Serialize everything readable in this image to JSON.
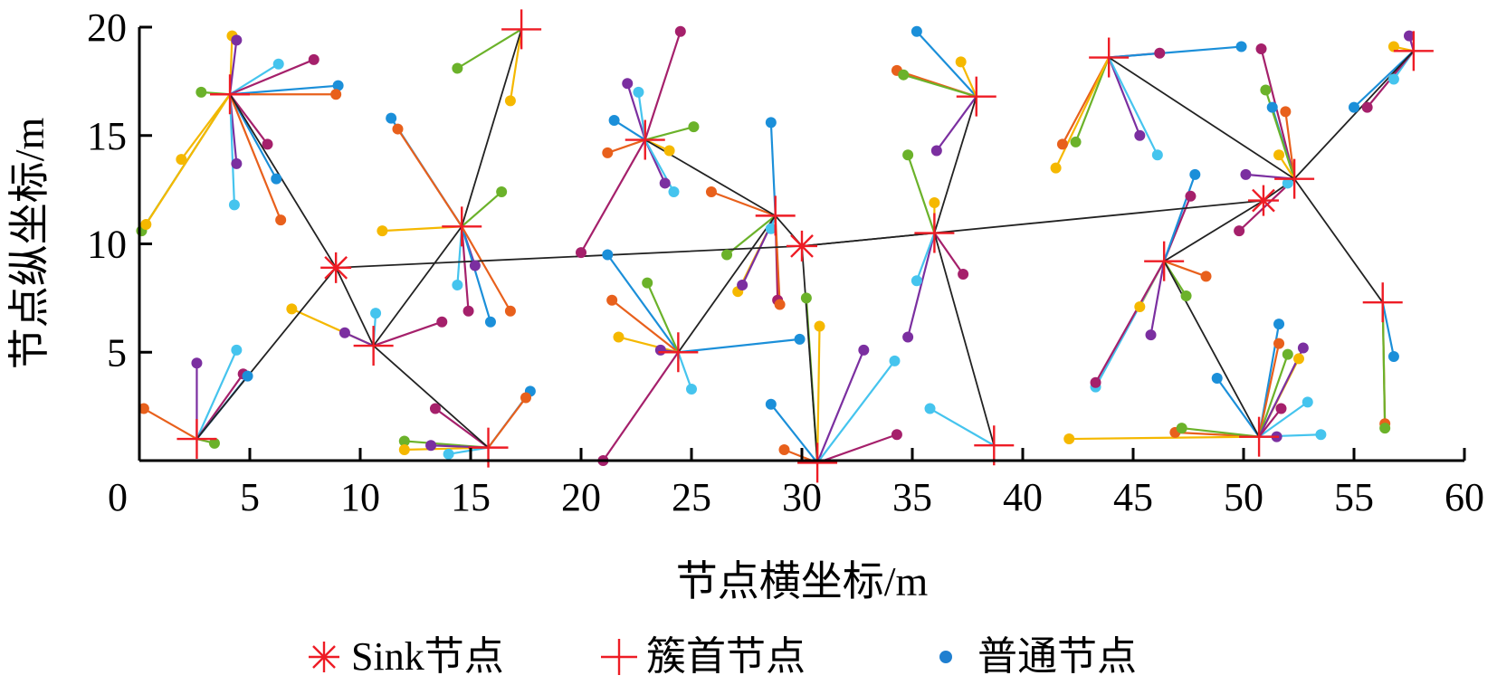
{
  "chart_data": {
    "type": "scatter",
    "xlabel": "节点横坐标/m",
    "ylabel": "节点纵坐标/m",
    "xlim": [
      0,
      60
    ],
    "ylim": [
      0,
      20
    ],
    "x_ticks": [
      "0",
      "5",
      "10",
      "15",
      "20",
      "25",
      "30",
      "35",
      "40",
      "45",
      "50",
      "55",
      "60"
    ],
    "y_ticks": [
      "5",
      "10",
      "15",
      "20"
    ],
    "grid": false,
    "legend_position": "bottom",
    "legend": [
      {
        "key": "sink",
        "label": "Sink节点",
        "marker": "asterisk",
        "color": "#ee1c25"
      },
      {
        "key": "head",
        "label": "簇首节点",
        "marker": "plus",
        "color": "#ee1c25"
      },
      {
        "key": "normal",
        "label": "普通节点",
        "marker": "dot",
        "color": "#1f7fd0"
      }
    ],
    "palette": [
      "#f5b800",
      "#e8601c",
      "#a5206b",
      "#7b2fa0",
      "#6bb22a",
      "#1b8fd9",
      "#45c4ee"
    ],
    "sinks": [
      {
        "x": 8.9,
        "y": 8.9
      },
      {
        "x": 30.0,
        "y": 9.9
      },
      {
        "x": 50.9,
        "y": 12.0
      }
    ],
    "heads": [
      {
        "id": "h1",
        "x": 4.1,
        "y": 16.9
      },
      {
        "id": "h2",
        "x": 2.6,
        "y": 1.0
      },
      {
        "id": "h3",
        "x": 10.6,
        "y": 5.3
      },
      {
        "id": "h4",
        "x": 14.6,
        "y": 10.8
      },
      {
        "id": "h5",
        "x": 15.8,
        "y": 0.6
      },
      {
        "id": "h6",
        "x": 17.3,
        "y": 19.9
      },
      {
        "id": "h7",
        "x": 22.9,
        "y": 14.8
      },
      {
        "id": "h8",
        "x": 24.4,
        "y": 5.0
      },
      {
        "id": "h9",
        "x": 28.8,
        "y": 11.3
      },
      {
        "id": "h10",
        "x": 30.7,
        "y": -0.1
      },
      {
        "id": "h11",
        "x": 36.0,
        "y": 10.5
      },
      {
        "id": "h12",
        "x": 37.9,
        "y": 16.8
      },
      {
        "id": "h13",
        "x": 38.7,
        "y": 0.7
      },
      {
        "id": "h14",
        "x": 43.9,
        "y": 18.6
      },
      {
        "id": "h15",
        "x": 46.4,
        "y": 9.2
      },
      {
        "id": "h16",
        "x": 50.7,
        "y": 1.1
      },
      {
        "id": "h17",
        "x": 52.3,
        "y": 13.0
      },
      {
        "id": "h18",
        "x": 56.3,
        "y": 7.3
      },
      {
        "id": "h19",
        "x": 57.7,
        "y": 18.9
      }
    ],
    "backbone": [
      [
        [
          4.1,
          16.9
        ],
        [
          8.9,
          8.9
        ],
        [
          2.6,
          1.0
        ]
      ],
      [
        [
          8.9,
          8.9
        ],
        [
          10.6,
          5.3
        ],
        [
          15.8,
          0.6
        ]
      ],
      [
        [
          10.6,
          5.3
        ],
        [
          14.6,
          10.8
        ],
        [
          17.3,
          19.9
        ]
      ],
      [
        [
          8.9,
          8.9
        ],
        [
          30.0,
          9.9
        ],
        [
          50.9,
          12.0
        ]
      ],
      [
        [
          30.0,
          9.9
        ],
        [
          28.8,
          11.3
        ],
        [
          22.9,
          14.8
        ]
      ],
      [
        [
          28.8,
          11.3
        ],
        [
          24.4,
          5.0
        ]
      ],
      [
        [
          30.0,
          9.9
        ],
        [
          30.7,
          -0.1
        ]
      ],
      [
        [
          30.0,
          9.9
        ],
        [
          36.0,
          10.5
        ],
        [
          38.7,
          0.7
        ]
      ],
      [
        [
          36.0,
          10.5
        ],
        [
          37.9,
          16.8
        ]
      ],
      [
        [
          50.9,
          12.0
        ],
        [
          46.4,
          9.2
        ],
        [
          50.7,
          1.1
        ]
      ],
      [
        [
          50.9,
          12.0
        ],
        [
          52.3,
          13.0
        ],
        [
          43.9,
          18.6
        ]
      ],
      [
        [
          52.3,
          13.0
        ],
        [
          57.7,
          18.9
        ]
      ],
      [
        [
          52.3,
          13.0
        ],
        [
          56.3,
          7.3
        ]
      ]
    ],
    "members": [
      {
        "h": "h1",
        "pts": [
          [
            4.2,
            19.6
          ],
          [
            4.4,
            19.4
          ],
          [
            6.3,
            18.3
          ],
          [
            7.9,
            18.5
          ],
          [
            9.0,
            17.3
          ],
          [
            8.9,
            16.9
          ],
          [
            2.8,
            17.0
          ],
          [
            1.9,
            13.9
          ],
          [
            4.4,
            13.7
          ],
          [
            4.3,
            11.8
          ],
          [
            5.8,
            14.6
          ],
          [
            6.2,
            13.0
          ],
          [
            6.4,
            11.1
          ],
          [
            0.1,
            10.6
          ],
          [
            0.3,
            10.9
          ]
        ]
      },
      {
        "h": "h2",
        "pts": [
          [
            2.6,
            4.5
          ],
          [
            4.4,
            5.1
          ],
          [
            4.7,
            4.0
          ],
          [
            4.9,
            3.9
          ],
          [
            0.2,
            2.4
          ],
          [
            3.4,
            0.8
          ]
        ]
      },
      {
        "h": "h3",
        "pts": [
          [
            6.9,
            7.0
          ],
          [
            9.3,
            5.9
          ],
          [
            10.7,
            6.8
          ],
          [
            13.7,
            6.4
          ]
        ]
      },
      {
        "h": "h4",
        "pts": [
          [
            11.4,
            15.8
          ],
          [
            11.7,
            15.3
          ],
          [
            16.4,
            12.4
          ],
          [
            11.0,
            10.6
          ],
          [
            15.2,
            9.0
          ],
          [
            14.4,
            8.1
          ],
          [
            14.9,
            6.9
          ],
          [
            15.9,
            6.4
          ],
          [
            16.8,
            6.9
          ]
        ]
      },
      {
        "h": "h5",
        "pts": [
          [
            12.0,
            0.9
          ],
          [
            12.0,
            0.5
          ],
          [
            13.2,
            0.7
          ],
          [
            14.0,
            0.3
          ],
          [
            13.4,
            2.4
          ],
          [
            17.7,
            3.2
          ],
          [
            17.5,
            2.9
          ]
        ]
      },
      {
        "h": "h6",
        "pts": [
          [
            14.4,
            18.1
          ],
          [
            16.8,
            16.6
          ]
        ]
      },
      {
        "h": "h7",
        "pts": [
          [
            22.1,
            17.4
          ],
          [
            22.6,
            17.0
          ],
          [
            24.5,
            19.8
          ],
          [
            21.5,
            15.7
          ],
          [
            21.2,
            14.2
          ],
          [
            25.1,
            15.4
          ],
          [
            24.0,
            14.3
          ],
          [
            23.8,
            12.8
          ],
          [
            24.2,
            12.4
          ],
          [
            20.0,
            9.6
          ]
        ]
      },
      {
        "h": "h8",
        "pts": [
          [
            21.2,
            9.5
          ],
          [
            21.4,
            7.4
          ],
          [
            23.0,
            8.2
          ],
          [
            21.7,
            5.7
          ],
          [
            23.6,
            5.1
          ],
          [
            25.0,
            3.3
          ],
          [
            21.0,
            0.0
          ],
          [
            29.9,
            5.6
          ]
        ]
      },
      {
        "h": "h9",
        "pts": [
          [
            25.9,
            12.4
          ],
          [
            26.6,
            9.5
          ],
          [
            27.1,
            7.8
          ],
          [
            27.3,
            8.1
          ],
          [
            28.6,
            10.7
          ],
          [
            28.9,
            7.4
          ],
          [
            28.6,
            15.6
          ],
          [
            29.0,
            7.2
          ]
        ]
      },
      {
        "h": "h10",
        "pts": [
          [
            30.2,
            7.5
          ],
          [
            30.8,
            6.2
          ],
          [
            32.8,
            5.1
          ],
          [
            34.2,
            4.6
          ],
          [
            34.3,
            1.2
          ],
          [
            28.6,
            2.6
          ],
          [
            29.2,
            0.5
          ]
        ]
      },
      {
        "h": "h11",
        "pts": [
          [
            34.8,
            14.1
          ],
          [
            36.0,
            11.9
          ],
          [
            34.8,
            5.7
          ],
          [
            35.2,
            8.3
          ],
          [
            37.3,
            8.6
          ]
        ]
      },
      {
        "h": "h12",
        "pts": [
          [
            35.2,
            19.8
          ],
          [
            34.3,
            18.0
          ],
          [
            34.6,
            17.8
          ],
          [
            37.2,
            18.4
          ],
          [
            36.1,
            14.3
          ]
        ]
      },
      {
        "h": "h13",
        "pts": [
          [
            35.8,
            2.4
          ]
        ]
      },
      {
        "h": "h14",
        "pts": [
          [
            46.2,
            18.8
          ],
          [
            49.9,
            19.1
          ],
          [
            41.8,
            14.6
          ],
          [
            42.4,
            14.7
          ],
          [
            41.5,
            13.5
          ],
          [
            45.3,
            15.0
          ],
          [
            46.1,
            14.1
          ]
        ]
      },
      {
        "h": "h15",
        "pts": [
          [
            47.6,
            12.2
          ],
          [
            47.8,
            13.2
          ],
          [
            48.3,
            8.5
          ],
          [
            47.4,
            7.6
          ],
          [
            45.3,
            7.1
          ],
          [
            45.8,
            5.8
          ],
          [
            43.3,
            3.4
          ],
          [
            43.3,
            3.6
          ]
        ]
      },
      {
        "h": "h16",
        "pts": [
          [
            51.6,
            6.3
          ],
          [
            51.6,
            5.4
          ],
          [
            52.0,
            4.9
          ],
          [
            52.5,
            4.7
          ],
          [
            52.7,
            5.2
          ],
          [
            52.9,
            2.7
          ],
          [
            51.7,
            2.4
          ],
          [
            48.8,
            3.8
          ],
          [
            46.9,
            1.3
          ],
          [
            47.2,
            1.5
          ],
          [
            42.1,
            1.0
          ],
          [
            51.5,
            1.1
          ],
          [
            53.5,
            1.2
          ]
        ]
      },
      {
        "h": "h17",
        "pts": [
          [
            50.8,
            19.0
          ],
          [
            51.3,
            16.3
          ],
          [
            51.9,
            16.1
          ],
          [
            51.0,
            17.1
          ],
          [
            51.6,
            14.1
          ],
          [
            50.1,
            13.2
          ],
          [
            52.0,
            12.8
          ],
          [
            49.8,
            10.6
          ]
        ]
      },
      {
        "h": "h18",
        "pts": [
          [
            56.8,
            4.8
          ],
          [
            56.4,
            1.7
          ],
          [
            56.4,
            1.5
          ]
        ]
      },
      {
        "h": "h19",
        "pts": [
          [
            56.8,
            19.1
          ],
          [
            57.5,
            19.6
          ],
          [
            56.8,
            17.6
          ],
          [
            55.6,
            16.3
          ],
          [
            55.0,
            16.3
          ]
        ]
      }
    ]
  }
}
